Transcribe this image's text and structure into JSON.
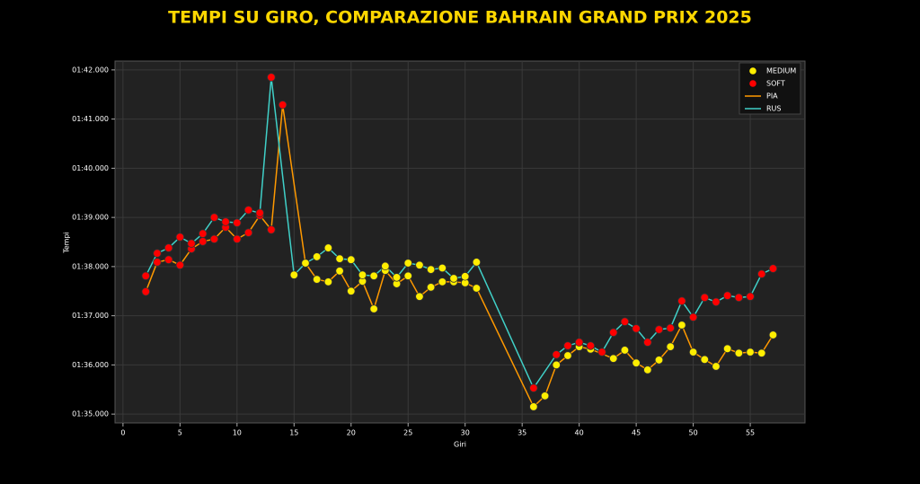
{
  "chart_data": {
    "type": "line",
    "title": "TEMPI SU GIRO, COMPARAZIONE BAHRAIN GRAND PRIX 2025",
    "x_label": "Giri",
    "y_label": "Tempi",
    "xlim": [
      -0.7,
      59.8
    ],
    "ylim": [
      94.82,
      102.18
    ],
    "xticks": [
      0,
      5,
      10,
      15,
      20,
      25,
      30,
      35,
      40,
      45,
      50,
      55
    ],
    "yticks": [
      {
        "value": 95,
        "label": "01:35.000"
      },
      {
        "value": 96,
        "label": "01:36.000"
      },
      {
        "value": 97,
        "label": "01:37.000"
      },
      {
        "value": 98,
        "label": "01:38.000"
      },
      {
        "value": 99,
        "label": "01:39.000"
      },
      {
        "value": 100,
        "label": "01:40.000"
      },
      {
        "value": 101,
        "label": "01:41.000"
      },
      {
        "value": 102,
        "label": "01:42.000"
      }
    ],
    "grid": true,
    "legend": "upper right",
    "marker_legend": [
      {
        "name": "MEDIUM",
        "color": "#ffee00"
      },
      {
        "name": "SOFT",
        "color": "#ff0000"
      }
    ],
    "series": [
      {
        "name": "PIA",
        "color": "#ff9900",
        "x": [
          2,
          3,
          4,
          5,
          6,
          7,
          8,
          9,
          10,
          11,
          12,
          13,
          14,
          16,
          17,
          18,
          19,
          20,
          21,
          22,
          23,
          24,
          25,
          26,
          27,
          28,
          29,
          30,
          31,
          36,
          37,
          38,
          39,
          40,
          41,
          43,
          44,
          45,
          46,
          47,
          48,
          49,
          50,
          51,
          52,
          53,
          54,
          55,
          56,
          57
        ],
        "values": [
          97.49,
          98.09,
          98.14,
          98.03,
          98.36,
          98.51,
          98.56,
          98.8,
          98.56,
          98.69,
          99.04,
          98.75,
          101.29,
          98.07,
          97.74,
          97.69,
          97.91,
          97.5,
          97.7,
          97.14,
          97.92,
          97.65,
          97.81,
          97.39,
          97.58,
          97.69,
          97.69,
          97.67,
          97.56,
          95.15,
          95.37,
          96.0,
          96.19,
          96.37,
          96.32,
          96.13,
          96.3,
          96.04,
          95.9,
          96.1,
          96.37,
          96.81,
          96.26,
          96.11,
          95.97,
          96.33,
          96.24,
          96.26,
          96.24,
          96.61
        ],
        "tyres": [
          "SOFT",
          "SOFT",
          "SOFT",
          "SOFT",
          "SOFT",
          "SOFT",
          "SOFT",
          "SOFT",
          "SOFT",
          "SOFT",
          "SOFT",
          "SOFT",
          "SOFT",
          "MEDIUM",
          "MEDIUM",
          "MEDIUM",
          "MEDIUM",
          "MEDIUM",
          "MEDIUM",
          "MEDIUM",
          "MEDIUM",
          "MEDIUM",
          "MEDIUM",
          "MEDIUM",
          "MEDIUM",
          "MEDIUM",
          "MEDIUM",
          "MEDIUM",
          "MEDIUM",
          "MEDIUM",
          "MEDIUM",
          "MEDIUM",
          "MEDIUM",
          "MEDIUM",
          "MEDIUM",
          "MEDIUM",
          "MEDIUM",
          "MEDIUM",
          "MEDIUM",
          "MEDIUM",
          "MEDIUM",
          "MEDIUM",
          "MEDIUM",
          "MEDIUM",
          "MEDIUM",
          "MEDIUM",
          "MEDIUM",
          "MEDIUM",
          "MEDIUM",
          "MEDIUM"
        ]
      },
      {
        "name": "RUS",
        "color": "#40d0c8",
        "x": [
          2,
          3,
          4,
          5,
          6,
          7,
          8,
          9,
          10,
          11,
          12,
          13,
          15,
          16,
          17,
          18,
          19,
          20,
          21,
          22,
          23,
          24,
          25,
          26,
          27,
          28,
          29,
          30,
          31,
          36,
          38,
          39,
          40,
          41,
          42,
          43,
          44,
          45,
          46,
          47,
          48,
          49,
          50,
          51,
          52,
          53,
          54,
          55,
          56,
          57
        ],
        "values": [
          97.81,
          98.27,
          98.38,
          98.6,
          98.47,
          98.67,
          99.0,
          98.91,
          98.89,
          99.15,
          99.09,
          101.85,
          97.83,
          98.07,
          98.2,
          98.38,
          98.16,
          98.14,
          97.83,
          97.81,
          98.01,
          97.78,
          98.07,
          98.03,
          97.94,
          97.97,
          97.76,
          97.8,
          98.09,
          95.53,
          96.21,
          96.39,
          96.46,
          96.39,
          96.26,
          96.66,
          96.88,
          96.74,
          96.46,
          96.72,
          96.75,
          97.3,
          96.97,
          97.37,
          97.28,
          97.41,
          97.37,
          97.39,
          97.85,
          97.96
        ],
        "tyres": [
          "SOFT",
          "SOFT",
          "SOFT",
          "SOFT",
          "SOFT",
          "SOFT",
          "SOFT",
          "SOFT",
          "SOFT",
          "SOFT",
          "SOFT",
          "SOFT",
          "MEDIUM",
          "MEDIUM",
          "MEDIUM",
          "MEDIUM",
          "MEDIUM",
          "MEDIUM",
          "MEDIUM",
          "MEDIUM",
          "MEDIUM",
          "MEDIUM",
          "MEDIUM",
          "MEDIUM",
          "MEDIUM",
          "MEDIUM",
          "MEDIUM",
          "MEDIUM",
          "MEDIUM",
          "SOFT",
          "SOFT",
          "SOFT",
          "SOFT",
          "SOFT",
          "SOFT",
          "SOFT",
          "SOFT",
          "SOFT",
          "SOFT",
          "SOFT",
          "SOFT",
          "SOFT",
          "SOFT",
          "SOFT",
          "SOFT",
          "SOFT",
          "SOFT",
          "SOFT",
          "SOFT",
          "SOFT"
        ]
      }
    ]
  }
}
